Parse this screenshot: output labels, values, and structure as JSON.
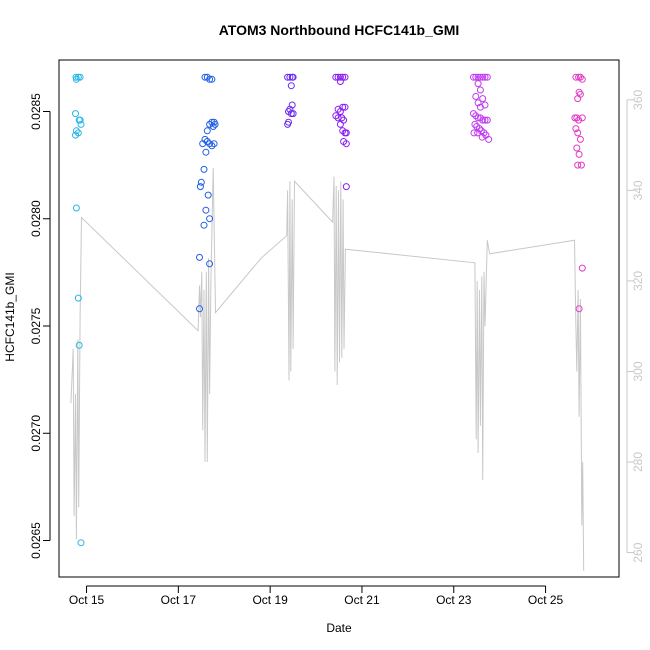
{
  "chart_data": {
    "type": "scatter",
    "title": "ATOM3 Northbound HCFC141b_GMI",
    "xlabel": "Date",
    "ylabel": "HCFC141b_GMI",
    "x_unit": "day of October 2017",
    "xlim": [
      14.4,
      26.6
    ],
    "ylim": [
      0.02633,
      0.02874
    ],
    "y2lim": [
      254.6,
      368.8
    ],
    "x_ticks": [
      15,
      17,
      19,
      21,
      23,
      25
    ],
    "x_tick_labels": [
      "Oct 15",
      "Oct 17",
      "Oct 19",
      "Oct 21",
      "Oct 23",
      "Oct 25"
    ],
    "y_ticks": [
      0.0265,
      0.027,
      0.0275,
      0.028,
      0.0285
    ],
    "y_tick_labels": [
      "0.0265",
      "0.0270",
      "0.0275",
      "0.0280",
      "0.0285"
    ],
    "y2_ticks": [
      260,
      280,
      300,
      320,
      340,
      360
    ],
    "y2_tick_labels": [
      "260",
      "280",
      "300",
      "320",
      "340",
      "360"
    ],
    "grid": false,
    "legend": "none",
    "colors": {
      "line": "#c8c8c8",
      "frame": "#000000",
      "right_axis": "#c8c8c8",
      "flight_colors": [
        "#29b6e8",
        "#1f5ee6",
        "#6a2cf0",
        "#8a1ef0",
        "#c03cf0",
        "#e23ac8"
      ]
    },
    "points": [
      {
        "flight": 0,
        "pts": [
          [
            14.77,
            0.02866
          ],
          [
            14.82,
            0.02866
          ],
          [
            14.86,
            0.02866
          ],
          [
            14.78,
            0.02865
          ],
          [
            14.76,
            0.02849
          ],
          [
            14.84,
            0.02846
          ],
          [
            14.86,
            0.02846
          ],
          [
            14.88,
            0.02844
          ],
          [
            14.78,
            0.02841
          ],
          [
            14.82,
            0.0284
          ],
          [
            14.76,
            0.02839
          ],
          [
            14.78,
            0.02805
          ],
          [
            14.82,
            0.02763
          ],
          [
            14.84,
            0.02741
          ],
          [
            14.88,
            0.02649
          ]
        ]
      },
      {
        "flight": 1,
        "pts": [
          [
            17.58,
            0.02866
          ],
          [
            17.63,
            0.02866
          ],
          [
            17.68,
            0.02865
          ],
          [
            17.73,
            0.02865
          ],
          [
            17.73,
            0.02845
          ],
          [
            17.78,
            0.02845
          ],
          [
            17.8,
            0.02844
          ],
          [
            17.68,
            0.02844
          ],
          [
            17.63,
            0.02841
          ],
          [
            17.76,
            0.02843
          ],
          [
            17.58,
            0.02837
          ],
          [
            17.53,
            0.02835
          ],
          [
            17.63,
            0.02836
          ],
          [
            17.68,
            0.02835
          ],
          [
            17.73,
            0.02834
          ],
          [
            17.78,
            0.02835
          ],
          [
            17.6,
            0.02831
          ],
          [
            17.56,
            0.02823
          ],
          [
            17.5,
            0.02817
          ],
          [
            17.48,
            0.02815
          ],
          [
            17.65,
            0.02811
          ],
          [
            17.6,
            0.02804
          ],
          [
            17.68,
            0.028
          ],
          [
            17.56,
            0.02797
          ],
          [
            17.46,
            0.02782
          ],
          [
            17.68,
            0.02779
          ],
          [
            17.46,
            0.02758
          ]
        ]
      },
      {
        "flight": 2,
        "pts": [
          [
            19.38,
            0.02866
          ],
          [
            19.43,
            0.02866
          ],
          [
            19.48,
            0.02866
          ],
          [
            19.5,
            0.02866
          ],
          [
            19.46,
            0.02862
          ],
          [
            19.48,
            0.02853
          ],
          [
            19.43,
            0.02851
          ],
          [
            19.4,
            0.0285
          ],
          [
            19.46,
            0.02849
          ],
          [
            19.5,
            0.02849
          ],
          [
            19.4,
            0.02845
          ],
          [
            19.38,
            0.02844
          ]
        ]
      },
      {
        "flight": 3,
        "pts": [
          [
            20.43,
            0.02866
          ],
          [
            20.48,
            0.02866
          ],
          [
            20.53,
            0.02866
          ],
          [
            20.58,
            0.02866
          ],
          [
            20.63,
            0.02866
          ],
          [
            20.53,
            0.02864
          ],
          [
            20.58,
            0.02852
          ],
          [
            20.63,
            0.02852
          ],
          [
            20.48,
            0.02851
          ],
          [
            20.53,
            0.0285
          ],
          [
            20.43,
            0.02848
          ],
          [
            20.48,
            0.02847
          ],
          [
            20.56,
            0.02847
          ],
          [
            20.6,
            0.02846
          ],
          [
            20.53,
            0.02844
          ],
          [
            20.58,
            0.02841
          ],
          [
            20.63,
            0.0284
          ],
          [
            20.66,
            0.0284
          ],
          [
            20.6,
            0.02836
          ],
          [
            20.66,
            0.02835
          ],
          [
            20.66,
            0.02815
          ]
        ]
      },
      {
        "flight": 4,
        "pts": [
          [
            23.43,
            0.02866
          ],
          [
            23.48,
            0.02866
          ],
          [
            23.53,
            0.02866
          ],
          [
            23.58,
            0.02866
          ],
          [
            23.63,
            0.02866
          ],
          [
            23.68,
            0.02866
          ],
          [
            23.73,
            0.02866
          ],
          [
            23.53,
            0.02863
          ],
          [
            23.58,
            0.0286
          ],
          [
            23.48,
            0.02857
          ],
          [
            23.63,
            0.02856
          ],
          [
            23.53,
            0.02854
          ],
          [
            23.58,
            0.02852
          ],
          [
            23.68,
            0.02853
          ],
          [
            23.43,
            0.02849
          ],
          [
            23.48,
            0.02848
          ],
          [
            23.53,
            0.02847
          ],
          [
            23.58,
            0.02847
          ],
          [
            23.63,
            0.02846
          ],
          [
            23.68,
            0.02846
          ],
          [
            23.73,
            0.02846
          ],
          [
            23.46,
            0.02844
          ],
          [
            23.5,
            0.02843
          ],
          [
            23.56,
            0.02842
          ],
          [
            23.6,
            0.02841
          ],
          [
            23.66,
            0.0284
          ],
          [
            23.7,
            0.02839
          ],
          [
            23.44,
            0.0284
          ],
          [
            23.52,
            0.0284
          ],
          [
            23.62,
            0.02838
          ],
          [
            23.76,
            0.02837
          ]
        ]
      },
      {
        "flight": 5,
        "pts": [
          [
            25.66,
            0.02866
          ],
          [
            25.72,
            0.02866
          ],
          [
            25.76,
            0.02866
          ],
          [
            25.8,
            0.02865
          ],
          [
            25.73,
            0.02859
          ],
          [
            25.76,
            0.02858
          ],
          [
            25.7,
            0.02856
          ],
          [
            25.64,
            0.02847
          ],
          [
            25.68,
            0.02847
          ],
          [
            25.8,
            0.02847
          ],
          [
            25.72,
            0.02846
          ],
          [
            25.66,
            0.02842
          ],
          [
            25.7,
            0.0284
          ],
          [
            25.76,
            0.02837
          ],
          [
            25.68,
            0.02833
          ],
          [
            25.73,
            0.0283
          ],
          [
            25.7,
            0.02825
          ],
          [
            25.78,
            0.02825
          ],
          [
            25.8,
            0.02777
          ],
          [
            25.73,
            0.02758
          ]
        ]
      }
    ],
    "secondary_line": {
      "axis": "right",
      "pts": [
        [
          14.66,
          293
        ],
        [
          14.71,
          305
        ],
        [
          14.73,
          268
        ],
        [
          14.76,
          295
        ],
        [
          14.78,
          263
        ],
        [
          14.81,
          307
        ],
        [
          14.83,
          270
        ],
        [
          14.86,
          312
        ],
        [
          14.89,
          334
        ],
        [
          17.43,
          309
        ],
        [
          17.46,
          319
        ],
        [
          17.48,
          312
        ],
        [
          17.51,
          322
        ],
        [
          17.53,
          287
        ],
        [
          17.56,
          318
        ],
        [
          17.58,
          280
        ],
        [
          17.61,
          322
        ],
        [
          17.63,
          280
        ],
        [
          17.66,
          325
        ],
        [
          17.68,
          295
        ],
        [
          17.71,
          320
        ],
        [
          17.76,
          345
        ],
        [
          17.81,
          313
        ],
        [
          18.8,
          325
        ],
        [
          19.36,
          330
        ],
        [
          19.38,
          340
        ],
        [
          19.41,
          298
        ],
        [
          19.43,
          342
        ],
        [
          19.45,
          300
        ],
        [
          19.48,
          338
        ],
        [
          19.5,
          305
        ],
        [
          19.53,
          342
        ],
        [
          20.36,
          333
        ],
        [
          20.39,
          343
        ],
        [
          20.41,
          300
        ],
        [
          20.44,
          341
        ],
        [
          20.46,
          297
        ],
        [
          20.49,
          340
        ],
        [
          20.51,
          302
        ],
        [
          20.54,
          342
        ],
        [
          20.56,
          303
        ],
        [
          20.59,
          338
        ],
        [
          20.61,
          305
        ],
        [
          20.64,
          327
        ],
        [
          23.46,
          324
        ],
        [
          23.49,
          285
        ],
        [
          23.51,
          320
        ],
        [
          23.53,
          282
        ],
        [
          23.56,
          318
        ],
        [
          23.58,
          288
        ],
        [
          23.61,
          321
        ],
        [
          23.63,
          276
        ],
        [
          23.66,
          322
        ],
        [
          23.68,
          310
        ],
        [
          23.73,
          329
        ],
        [
          23.78,
          326
        ],
        [
          25.63,
          329
        ],
        [
          25.66,
          310
        ],
        [
          25.68,
          300
        ],
        [
          25.71,
          318
        ],
        [
          25.73,
          290
        ],
        [
          25.76,
          316
        ],
        [
          25.79,
          266
        ],
        [
          25.81,
          280
        ],
        [
          25.83,
          256
        ]
      ]
    }
  }
}
